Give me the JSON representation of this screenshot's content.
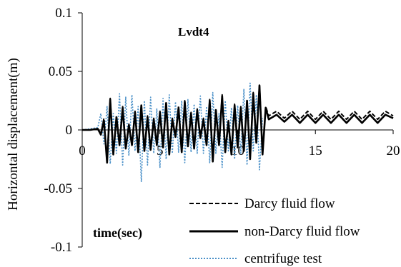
{
  "chart_data": {
    "type": "line",
    "title": "Lvdt4",
    "ylabel": "Horizontal displacement(m)",
    "annotation": "time(sec)",
    "xlim": [
      0,
      20
    ],
    "ylim": [
      -0.1,
      0.1
    ],
    "x_ticks": [
      "0",
      "5",
      "10",
      "15",
      "20"
    ],
    "y_ticks": [
      "0.1",
      "0.05",
      "0",
      "-0.05",
      "-0.1"
    ],
    "legend_position": "bottom-right",
    "colors": {
      "darcy": "#000000",
      "non_darcy": "#000000",
      "centrifuge": "#4a90c8"
    },
    "series": [
      {
        "name": "Darcy fluid flow",
        "style": "dashed",
        "x": [
          0,
          0.5,
          1,
          1.2,
          1.4,
          1.6,
          1.8,
          2.0,
          2.2,
          2.4,
          2.6,
          2.8,
          3.0,
          3.2,
          3.4,
          3.6,
          3.8,
          4.0,
          4.2,
          4.4,
          4.6,
          4.8,
          5.0,
          5.2,
          5.4,
          5.6,
          5.8,
          6.0,
          6.2,
          6.4,
          6.6,
          6.8,
          7.0,
          7.2,
          7.4,
          7.6,
          7.8,
          8.0,
          8.2,
          8.4,
          8.6,
          8.8,
          9.0,
          9.2,
          9.4,
          9.6,
          9.8,
          10.0,
          10.2,
          10.4,
          10.6,
          10.8,
          11.0,
          11.2,
          11.4,
          11.6,
          11.8,
          12.0,
          12.5,
          13.0,
          13.5,
          14.0,
          14.5,
          15.0,
          15.5,
          16.0,
          16.5,
          17.0,
          17.5,
          18.0,
          18.5,
          19.0,
          19.5,
          20.0
        ],
        "values": [
          0,
          0,
          0.001,
          -0.003,
          0.01,
          -0.027,
          0.027,
          -0.02,
          0.012,
          -0.012,
          0.02,
          -0.015,
          0.005,
          -0.012,
          0.016,
          -0.018,
          0.022,
          -0.017,
          0.012,
          -0.016,
          0.01,
          -0.012,
          0.016,
          -0.014,
          0.024,
          -0.02,
          0.01,
          -0.005,
          0.02,
          -0.018,
          0.025,
          -0.013,
          0.015,
          -0.015,
          0.018,
          -0.006,
          0.01,
          -0.012,
          0.026,
          -0.026,
          0.018,
          -0.012,
          0.03,
          -0.018,
          0.008,
          -0.02,
          0.022,
          -0.014,
          0.02,
          -0.017,
          0.026,
          -0.024,
          0.032,
          -0.01,
          0.039,
          -0.02,
          0.02,
          0.012,
          0.016,
          0.01,
          0.016,
          0.009,
          0.016,
          0.009,
          0.016,
          0.009,
          0.016,
          0.009,
          0.016,
          0.009,
          0.016,
          0.009,
          0.016,
          0.012
        ]
      },
      {
        "name": "non-Darcy fluid flow",
        "style": "solid",
        "x": [
          0,
          0.5,
          1,
          1.2,
          1.4,
          1.6,
          1.8,
          2.0,
          2.2,
          2.4,
          2.6,
          2.8,
          3.0,
          3.2,
          3.4,
          3.6,
          3.8,
          4.0,
          4.2,
          4.4,
          4.6,
          4.8,
          5.0,
          5.2,
          5.4,
          5.6,
          5.8,
          6.0,
          6.2,
          6.4,
          6.6,
          6.8,
          7.0,
          7.2,
          7.4,
          7.6,
          7.8,
          8.0,
          8.2,
          8.4,
          8.6,
          8.8,
          9.0,
          9.2,
          9.4,
          9.6,
          9.8,
          10.0,
          10.2,
          10.4,
          10.6,
          10.8,
          11.0,
          11.2,
          11.4,
          11.6,
          11.8,
          12.0,
          12.5,
          13.0,
          13.5,
          14.0,
          14.5,
          15.0,
          15.5,
          16.0,
          16.5,
          17.0,
          17.5,
          18.0,
          18.5,
          19.0,
          19.5,
          20.0
        ],
        "values": [
          0,
          0,
          0.001,
          -0.004,
          0.008,
          -0.028,
          0.026,
          -0.021,
          0.011,
          -0.013,
          0.019,
          -0.016,
          0.004,
          -0.013,
          0.015,
          -0.019,
          0.021,
          -0.018,
          0.011,
          -0.017,
          0.009,
          -0.013,
          0.015,
          -0.015,
          0.023,
          -0.021,
          0.009,
          -0.006,
          0.019,
          -0.019,
          0.024,
          -0.014,
          0.014,
          -0.016,
          0.017,
          -0.007,
          0.009,
          -0.013,
          0.025,
          -0.027,
          0.017,
          -0.013,
          0.029,
          -0.019,
          0.007,
          -0.021,
          0.021,
          -0.015,
          0.019,
          -0.018,
          0.025,
          -0.025,
          0.031,
          -0.011,
          0.038,
          -0.021,
          0.019,
          0.009,
          0.013,
          0.007,
          0.013,
          0.006,
          0.013,
          0.006,
          0.013,
          0.006,
          0.013,
          0.006,
          0.013,
          0.006,
          0.013,
          0.006,
          0.013,
          0.01
        ]
      },
      {
        "name": "centrifuge test",
        "style": "dotted",
        "x": [
          0,
          1.0,
          1.2,
          1.4,
          1.6,
          1.8,
          2.0,
          2.2,
          2.4,
          2.6,
          2.8,
          3.0,
          3.2,
          3.4,
          3.6,
          3.8,
          4.0,
          4.2,
          4.4,
          4.6,
          4.8,
          5.0,
          5.2,
          5.4,
          5.6,
          5.8,
          6.0,
          6.2,
          6.4,
          6.6,
          6.8,
          7.0,
          7.2,
          7.4,
          7.6,
          7.8,
          8.0,
          8.2,
          8.4,
          8.6,
          8.8,
          9.0,
          9.2,
          9.4,
          9.6,
          9.8,
          10.0,
          10.2,
          10.4,
          10.6,
          10.8,
          11.0,
          11.2,
          11.4,
          11.6
        ],
        "values": [
          0,
          0.002,
          0.014,
          -0.012,
          0.02,
          -0.029,
          0.014,
          -0.02,
          0.031,
          -0.03,
          0.028,
          -0.022,
          0.03,
          -0.018,
          0.02,
          -0.044,
          0.025,
          -0.03,
          0.028,
          -0.02,
          0.018,
          -0.032,
          0.027,
          -0.025,
          0.03,
          -0.02,
          0.024,
          -0.019,
          0.025,
          -0.028,
          0.026,
          -0.019,
          0.022,
          -0.02,
          0.029,
          -0.02,
          0.02,
          -0.028,
          0.032,
          -0.02,
          0.014,
          -0.032,
          0.025,
          -0.018,
          0.019,
          -0.025,
          0.021,
          -0.02,
          0.035,
          -0.03,
          0.04,
          -0.018,
          0.03,
          -0.034,
          0.01
        ]
      }
    ]
  }
}
